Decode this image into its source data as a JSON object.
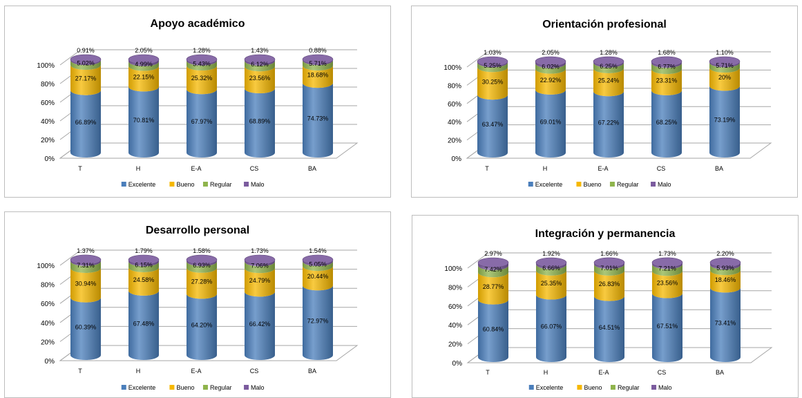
{
  "colors": {
    "excelente": "#4a7ebb",
    "bueno": "#f6b800",
    "regular": "#8fb44c",
    "malo": "#7b5b9e"
  },
  "chart_data": [
    {
      "type": "bar",
      "stacked": true,
      "title": "Apoyo académico",
      "categories": [
        "T",
        "H",
        "E-A",
        "CS",
        "BA"
      ],
      "y_ticks": [
        "0%",
        "20%",
        "40%",
        "60%",
        "80%",
        "100%"
      ],
      "ylim": [
        0,
        100
      ],
      "legend_position": "bottom",
      "series": [
        {
          "name": "Excelente",
          "values": [
            66.89,
            70.81,
            67.97,
            68.89,
            74.73
          ],
          "labels": [
            "66.89%",
            "70.81%",
            "67.97%",
            "68.89%",
            "74.73%"
          ]
        },
        {
          "name": "Bueno",
          "values": [
            27.17,
            22.15,
            25.32,
            23.56,
            18.68
          ],
          "labels": [
            "27.17%",
            "22.15%",
            "25.32%",
            "23.56%",
            "18.68%"
          ]
        },
        {
          "name": "Regular",
          "values": [
            5.02,
            4.99,
            5.43,
            6.12,
            5.71
          ],
          "labels": [
            "5.02%",
            "4.99%",
            "5.43%",
            "6.12%",
            "5.71%"
          ]
        },
        {
          "name": "Malo",
          "values": [
            0.91,
            2.05,
            1.28,
            1.43,
            0.88
          ],
          "labels": [
            "0.91%",
            "2.05%",
            "1.28%",
            "1.43%",
            "0.88%"
          ]
        }
      ]
    },
    {
      "type": "bar",
      "stacked": true,
      "title": "Orientación profesional",
      "categories": [
        "T",
        "H",
        "E-A",
        "CS",
        "BA"
      ],
      "y_ticks": [
        "0%",
        "20%",
        "40%",
        "60%",
        "80%",
        "100%"
      ],
      "ylim": [
        0,
        100
      ],
      "legend_position": "bottom",
      "series": [
        {
          "name": "Excelente",
          "values": [
            63.47,
            69.01,
            67.22,
            68.25,
            73.19
          ],
          "labels": [
            "63.47%",
            "69.01%",
            "67.22%",
            "68.25%",
            "73.19%"
          ]
        },
        {
          "name": "Bueno",
          "values": [
            30.25,
            22.92,
            25.24,
            23.31,
            20
          ],
          "labels": [
            "30.25%",
            "22.92%",
            "25.24%",
            "23.31%",
            "20%"
          ]
        },
        {
          "name": "Regular",
          "values": [
            5.25,
            6.02,
            6.25,
            6.77,
            5.71
          ],
          "labels": [
            "5.25%",
            "6.02%",
            "6.25%",
            "6.77%",
            "5.71%"
          ]
        },
        {
          "name": "Malo",
          "values": [
            1.03,
            2.05,
            1.28,
            1.68,
            1.1
          ],
          "labels": [
            "1.03%",
            "2.05%",
            "1.28%",
            "1.68%",
            "1.10%"
          ]
        }
      ]
    },
    {
      "type": "bar",
      "stacked": true,
      "title": "Desarrollo personal",
      "categories": [
        "T",
        "H",
        "E-A",
        "CS",
        "BA"
      ],
      "y_ticks": [
        "0%",
        "20%",
        "40%",
        "60%",
        "80%",
        "100%"
      ],
      "ylim": [
        0,
        100
      ],
      "legend_position": "bottom",
      "series": [
        {
          "name": "Excelente",
          "values": [
            60.39,
            67.48,
            64.2,
            66.42,
            72.97
          ],
          "labels": [
            "60.39%",
            "67.48%",
            "64.20%",
            "66.42%",
            "72.97%"
          ]
        },
        {
          "name": "Bueno",
          "values": [
            30.94,
            24.58,
            27.28,
            24.79,
            20.44
          ],
          "labels": [
            "30.94%",
            "24.58%",
            "27.28%",
            "24.79%",
            "20.44%"
          ]
        },
        {
          "name": "Regular",
          "values": [
            7.31,
            6.15,
            6.93,
            7.06,
            5.05
          ],
          "labels": [
            "7.31%",
            "6.15%",
            "6.93%",
            "7.06%",
            "5.05%"
          ]
        },
        {
          "name": "Malo",
          "values": [
            1.37,
            1.79,
            1.58,
            1.73,
            1.54
          ],
          "labels": [
            "1.37%",
            "1.79%",
            "1.58%",
            "1.73%",
            "1.54%"
          ]
        }
      ]
    },
    {
      "type": "bar",
      "stacked": true,
      "title": "Integración y permanencia",
      "categories": [
        "T",
        "H",
        "E-A",
        "CS",
        "BA"
      ],
      "y_ticks": [
        "0%",
        "20%",
        "40%",
        "60%",
        "80%",
        "100%"
      ],
      "ylim": [
        0,
        100
      ],
      "legend_position": "bottom",
      "series": [
        {
          "name": "Excelente",
          "values": [
            60.84,
            66.07,
            64.51,
            67.51,
            73.41
          ],
          "labels": [
            "60.84%",
            "66.07%",
            "64.51%",
            "67.51%",
            "73.41%"
          ]
        },
        {
          "name": "Bueno",
          "values": [
            28.77,
            25.35,
            26.83,
            23.56,
            18.46
          ],
          "labels": [
            "28.77%",
            "25.35%",
            "26.83%",
            "23.56%",
            "18.46%"
          ]
        },
        {
          "name": "Regular",
          "values": [
            7.42,
            6.66,
            7.01,
            7.21,
            5.93
          ],
          "labels": [
            "7.42%",
            "6.66%",
            "7.01%",
            "7.21%",
            "5.93%"
          ]
        },
        {
          "name": "Malo",
          "values": [
            2.97,
            1.92,
            1.66,
            1.73,
            2.2
          ],
          "labels": [
            "2.97%",
            "1.92%",
            "1.66%",
            "1.73%",
            "2.20%"
          ]
        }
      ]
    }
  ]
}
